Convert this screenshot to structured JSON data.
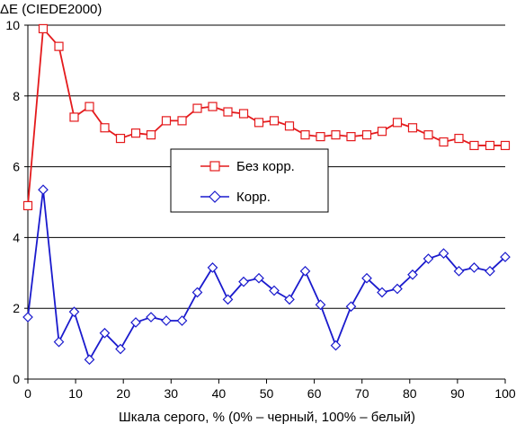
{
  "chart_data": {
    "type": "line",
    "ylabel": "ΔE (CIEDE2000)",
    "xlabel": "Шкала серого, % (0% – черный, 100% – белый)",
    "xlim": [
      0,
      100
    ],
    "ylim": [
      0,
      10
    ],
    "x_ticks": [
      0,
      10,
      20,
      30,
      40,
      50,
      60,
      70,
      80,
      90,
      100
    ],
    "y_ticks": [
      0,
      2,
      4,
      6,
      8,
      10
    ],
    "grid": "horizontal",
    "legend_position": "center",
    "x": [
      0,
      3.2,
      6.5,
      9.7,
      12.9,
      16.1,
      19.4,
      22.6,
      25.8,
      29.0,
      32.3,
      35.5,
      38.7,
      41.9,
      45.2,
      48.4,
      51.6,
      54.8,
      58.1,
      61.3,
      64.5,
      67.7,
      71.0,
      74.2,
      77.4,
      80.6,
      83.9,
      87.1,
      90.3,
      93.5,
      96.8,
      100
    ],
    "series": [
      {
        "name": "Без корр.",
        "color": "#e41a1c",
        "marker": "square",
        "values": [
          4.9,
          9.9,
          9.4,
          7.4,
          7.7,
          7.1,
          6.8,
          6.95,
          6.9,
          7.3,
          7.3,
          7.65,
          7.7,
          7.55,
          7.5,
          7.25,
          7.3,
          7.15,
          6.9,
          6.85,
          6.9,
          6.85,
          6.9,
          7.0,
          7.25,
          7.1,
          6.9,
          6.7,
          6.8,
          6.6,
          6.6,
          6.6
        ]
      },
      {
        "name": "Корр.",
        "color": "#1a1acd",
        "marker": "diamond",
        "values": [
          1.75,
          5.35,
          1.05,
          1.9,
          0.55,
          1.3,
          0.85,
          1.6,
          1.75,
          1.65,
          1.65,
          2.45,
          3.15,
          2.25,
          2.75,
          2.85,
          2.5,
          2.25,
          3.05,
          2.1,
          0.95,
          2.05,
          2.85,
          2.45,
          2.55,
          2.95,
          3.4,
          3.55,
          3.05,
          3.15,
          3.05,
          3.45
        ]
      }
    ]
  }
}
